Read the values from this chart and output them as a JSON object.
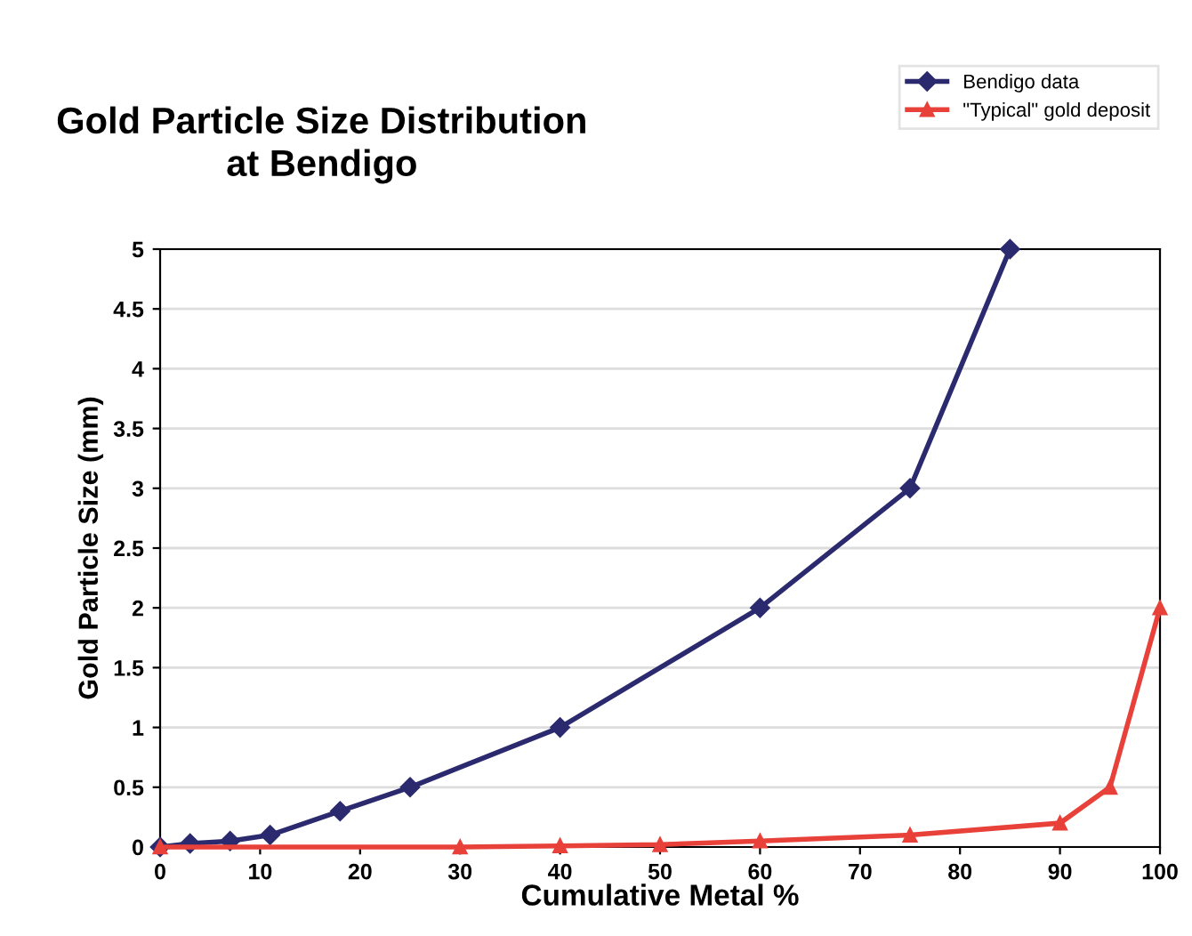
{
  "chart_data": {
    "type": "line",
    "title": "Gold Particle Size Distribution\nat Bendigo",
    "xlabel": "Cumulative Metal %",
    "ylabel": "Gold Particle Size (mm)",
    "series": [
      {
        "name": "Bendigo data",
        "color": "#2b2a6e",
        "marker": "diamond",
        "x": [
          0,
          3,
          7,
          11,
          18,
          25,
          40,
          60,
          75,
          85
        ],
        "values": [
          0,
          0.03,
          0.05,
          0.1,
          0.3,
          0.5,
          1,
          2,
          3,
          5
        ]
      },
      {
        "name": "\"Typical\" gold deposit",
        "color": "#e8413a",
        "marker": "triangle",
        "x": [
          0,
          30,
          40,
          50,
          60,
          75,
          90,
          95,
          100
        ],
        "values": [
          0,
          0,
          0.01,
          0.02,
          0.05,
          0.1,
          0.2,
          0.5,
          2
        ]
      }
    ],
    "xlim": [
      0,
      100
    ],
    "xticks": [
      0,
      10,
      20,
      30,
      40,
      50,
      60,
      70,
      80,
      90,
      100
    ],
    "ylim": [
      0,
      5
    ],
    "yticks": [
      0,
      0.5,
      1,
      1.5,
      2,
      2.5,
      3,
      3.5,
      4,
      4.5,
      5
    ],
    "grid": "y",
    "legend": "top right",
    "line_style": "solid"
  }
}
